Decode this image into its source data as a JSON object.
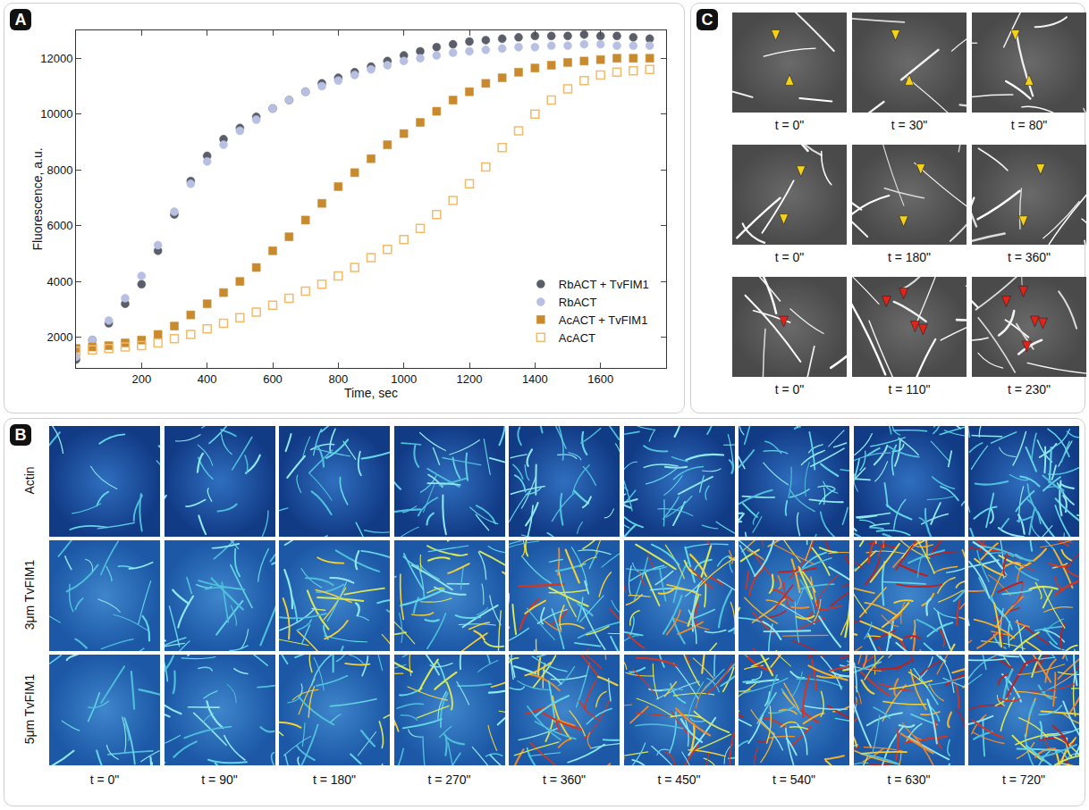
{
  "chart_data": {
    "type": "scatter",
    "x_label": "Time, sec",
    "y_label": "Fluorescence, a.u.",
    "xlim": [
      0,
      1800
    ],
    "xticks": [
      200,
      400,
      600,
      800,
      1000,
      1200,
      1400,
      1600
    ],
    "ylim": [
      900,
      13000
    ],
    "yticks": [
      2000,
      4000,
      6000,
      8000,
      10000,
      12000
    ],
    "grid": false,
    "legend": "lower right",
    "x": [
      0,
      50,
      100,
      150,
      200,
      250,
      300,
      350,
      400,
      450,
      500,
      550,
      600,
      650,
      700,
      750,
      800,
      850,
      900,
      950,
      1000,
      1050,
      1100,
      1150,
      1200,
      1250,
      1300,
      1350,
      1400,
      1450,
      1500,
      1550,
      1600,
      1650,
      1700,
      1750
    ],
    "series": [
      {
        "name": "RbACT + TvFIM1",
        "color": "#5b5e68",
        "marker": "circle",
        "values": [
          1200,
          1900,
          2500,
          3200,
          3900,
          5100,
          6400,
          7600,
          8500,
          9100,
          9500,
          9900,
          10200,
          10500,
          10800,
          11100,
          11300,
          11500,
          11700,
          11900,
          12100,
          12250,
          12400,
          12500,
          12600,
          12650,
          12700,
          12750,
          12800,
          12800,
          12800,
          12850,
          12800,
          12800,
          12750,
          12700
        ]
      },
      {
        "name": "RbACT",
        "color": "#b7c0e2",
        "marker": "circle",
        "values": [
          1300,
          1900,
          2600,
          3400,
          4200,
          5300,
          6500,
          7500,
          8300,
          8900,
          9400,
          9800,
          10200,
          10500,
          10800,
          11000,
          11200,
          11400,
          11600,
          11750,
          11900,
          12000,
          12100,
          12200,
          12250,
          12300,
          12350,
          12400,
          12400,
          12450,
          12450,
          12500,
          12500,
          12450,
          12450,
          12450
        ]
      },
      {
        "name": "AcACT + TvFIM1",
        "color": "#c98a2e",
        "marker": "square",
        "values": [
          1600,
          1650,
          1700,
          1800,
          1900,
          2100,
          2400,
          2800,
          3200,
          3600,
          4000,
          4500,
          5100,
          5600,
          6200,
          6800,
          7400,
          7900,
          8400,
          8900,
          9300,
          9700,
          10100,
          10500,
          10800,
          11100,
          11300,
          11500,
          11650,
          11750,
          11850,
          11900,
          11950,
          12000,
          12000,
          12000
        ]
      },
      {
        "name": "AcACT",
        "color": "#f3bb68",
        "marker": "square-open",
        "values": [
          1500,
          1550,
          1600,
          1650,
          1700,
          1800,
          1950,
          2100,
          2300,
          2500,
          2700,
          2900,
          3150,
          3400,
          3650,
          3900,
          4200,
          4500,
          4850,
          5150,
          5500,
          5900,
          6400,
          6900,
          7500,
          8100,
          8800,
          9400,
          10000,
          10500,
          10900,
          11200,
          11400,
          11500,
          11550,
          11600
        ]
      }
    ]
  },
  "panel_letters": {
    "A": "A",
    "B": "B",
    "C": "C"
  },
  "panel_b": {
    "row_labels": [
      "Actin",
      "3μm TvFIM1",
      "5μm TvFIM1"
    ],
    "times": [
      "t = 0\"",
      "t = 90\"",
      "t = 180\"",
      "t = 270\"",
      "t = 360\"",
      "t = 450\"",
      "t = 540\"",
      "t = 630\"",
      "t = 720\""
    ]
  },
  "panel_c": {
    "rows": [
      [
        "t = 0\"",
        "t = 30\"",
        "t = 80\""
      ],
      [
        "t = 0\"",
        "t = 180\"",
        "t = 360\""
      ],
      [
        "t = 0\"",
        "t = 110\"",
        "t = 230\""
      ]
    ]
  }
}
